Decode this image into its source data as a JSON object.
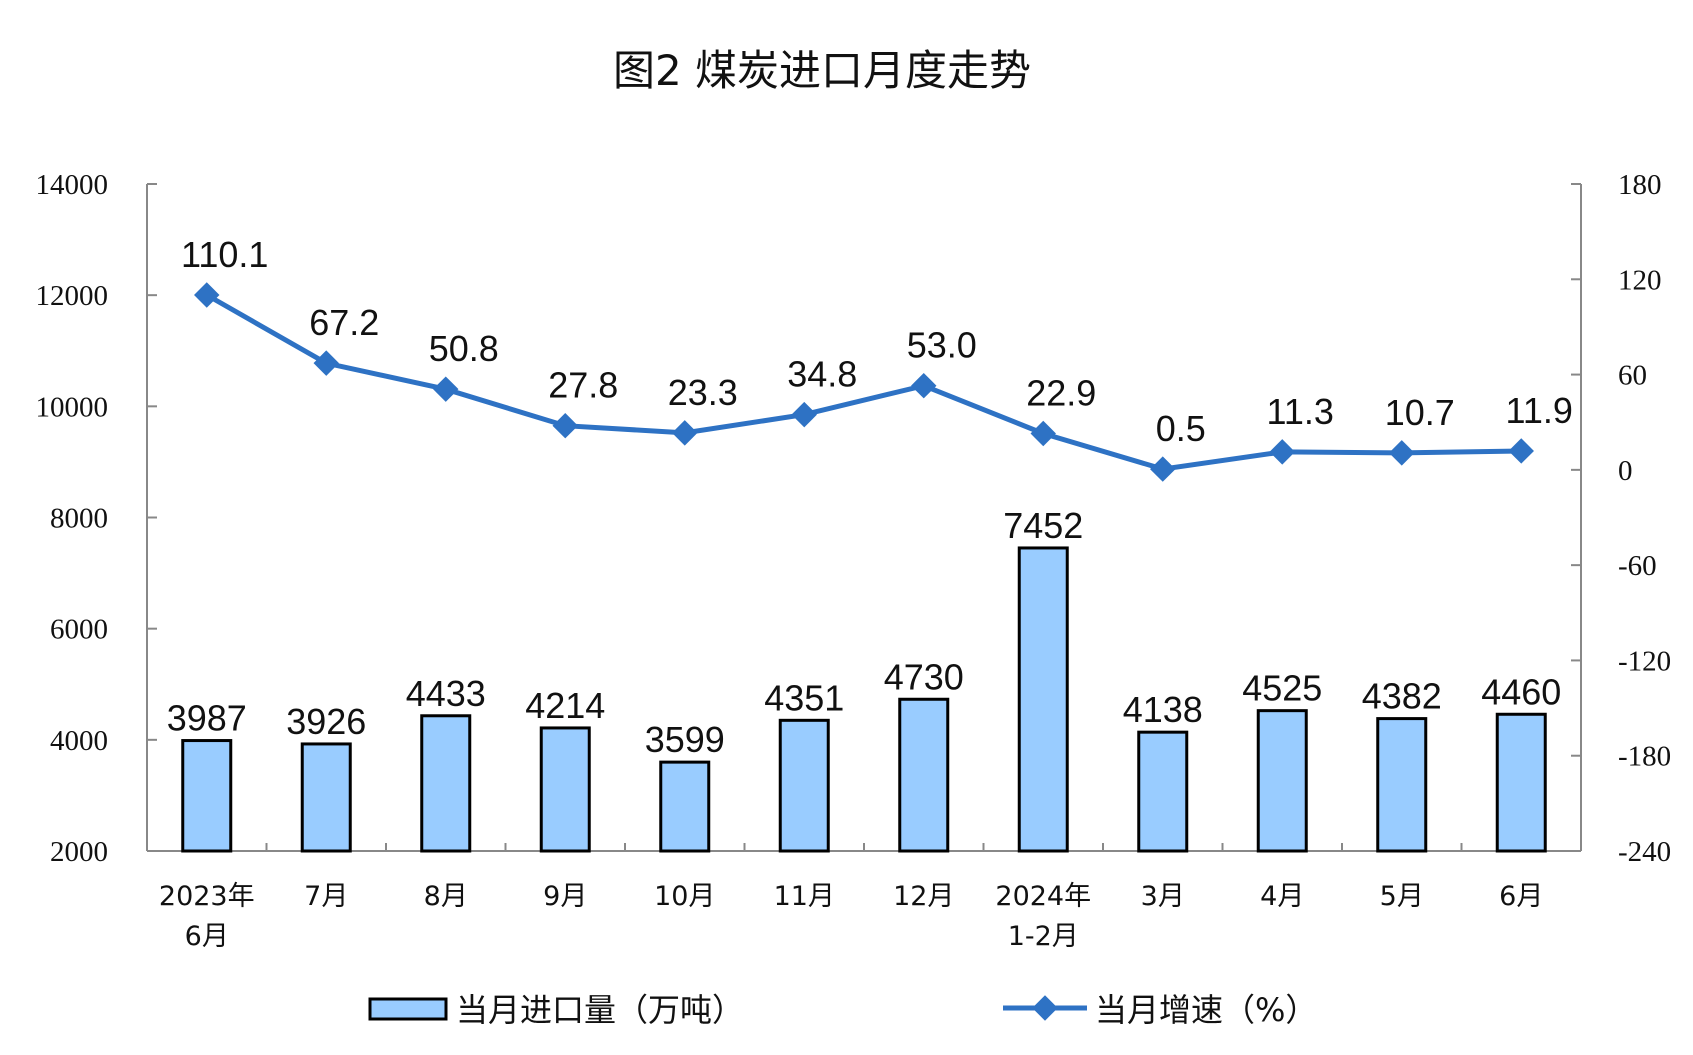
{
  "chart_data": {
    "type": "bar+line",
    "title": "图2  煤炭进口月度走势",
    "categories": [
      [
        "2023年",
        "6月"
      ],
      [
        "7月"
      ],
      [
        "8月"
      ],
      [
        "9月"
      ],
      [
        "10月"
      ],
      [
        "11月"
      ],
      [
        "12月"
      ],
      [
        "2024年",
        "1-2月"
      ],
      [
        "3月"
      ],
      [
        "4月"
      ],
      [
        "5月"
      ],
      [
        "6月"
      ]
    ],
    "series": [
      {
        "name": "当月进口量（万吨）",
        "type": "bar",
        "axis": "left",
        "color": "#99CCFF",
        "values": [
          3987,
          3926,
          4433,
          4214,
          3599,
          4351,
          4730,
          7452,
          4138,
          4525,
          4382,
          4460
        ],
        "labels": [
          "3987",
          "3926",
          "4433",
          "4214",
          "3599",
          "4351",
          "4730",
          "7452",
          "4138",
          "4525",
          "4382",
          "4460"
        ]
      },
      {
        "name": "当月增速（%）",
        "type": "line",
        "axis": "right",
        "color": "#2E72C4",
        "values": [
          110.1,
          67.2,
          50.8,
          27.8,
          23.3,
          34.8,
          53.0,
          22.9,
          0.5,
          11.3,
          10.7,
          11.9
        ],
        "labels": [
          "110.1",
          "67.2",
          "50.8",
          "27.8",
          "23.3",
          "34.8",
          "53.0",
          "22.9",
          "0.5",
          "11.3",
          "10.7",
          "11.9"
        ]
      }
    ],
    "left_axis": {
      "ylim": [
        2000,
        14000
      ],
      "ticks": [
        "14000",
        "12000",
        "10000",
        "8000",
        "6000",
        "4000",
        "2000"
      ]
    },
    "right_axis": {
      "ylim": [
        -240,
        180
      ],
      "ticks": [
        "180",
        "120",
        "60",
        "0",
        "-60",
        "-120",
        "-180",
        "-240"
      ]
    },
    "grid": false,
    "legend_position": "bottom"
  }
}
